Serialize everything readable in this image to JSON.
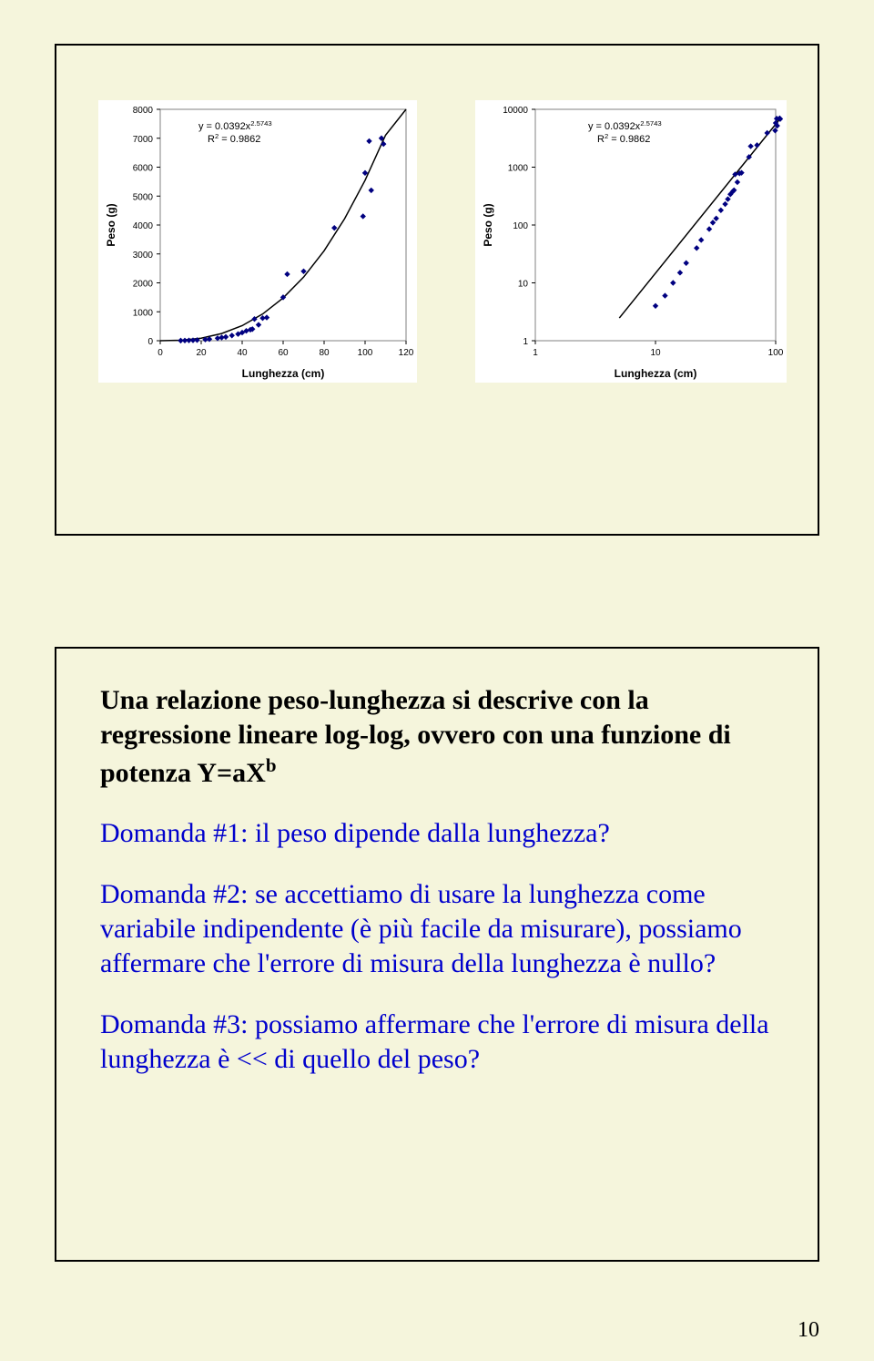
{
  "page_number": "10",
  "chart_panel": {
    "background_color": "#f5f5dc",
    "border_color": "#000000"
  },
  "chart_linear": {
    "type": "scatter",
    "xlabel": "Lunghezza (cm)",
    "ylabel": "Peso (g)",
    "xlabel_fontsize": 12,
    "ylabel_fontsize": 12,
    "xlim": [
      0,
      120
    ],
    "ylim": [
      0,
      8000
    ],
    "xtick_step": 20,
    "ytick_step": 1000,
    "xticks": [
      0,
      20,
      40,
      60,
      80,
      100,
      120
    ],
    "yticks": [
      0,
      1000,
      2000,
      3000,
      4000,
      5000,
      6000,
      7000,
      8000
    ],
    "tick_fontsize": 10,
    "point_color": "#000080",
    "fit_line_color": "#000000",
    "fit_line_width": 1.5,
    "plot_border_color": "#808080",
    "background_color": "#ffffff",
    "equation_line1": "y = 0.0392x",
    "equation_exp": "2.5743",
    "equation_line2_a": "R",
    "equation_line2_sup": "2",
    "equation_line2_b": " = 0.9862",
    "equation_fontsize": 11,
    "points": [
      [
        10,
        4
      ],
      [
        12,
        6
      ],
      [
        14,
        10
      ],
      [
        16,
        15
      ],
      [
        18,
        22
      ],
      [
        22,
        40
      ],
      [
        24,
        55
      ],
      [
        28,
        85
      ],
      [
        30,
        110
      ],
      [
        32,
        130
      ],
      [
        35,
        180
      ],
      [
        38,
        230
      ],
      [
        40,
        280
      ],
      [
        42,
        340
      ],
      [
        44,
        380
      ],
      [
        45,
        400
      ],
      [
        46,
        750
      ],
      [
        48,
        550
      ],
      [
        50,
        780
      ],
      [
        52,
        800
      ],
      [
        60,
        1500
      ],
      [
        62,
        2300
      ],
      [
        70,
        2400
      ],
      [
        85,
        3900
      ],
      [
        99,
        4300
      ],
      [
        100,
        5800
      ],
      [
        102,
        6900
      ],
      [
        103,
        5200
      ],
      [
        108,
        7000
      ],
      [
        109,
        6800
      ]
    ],
    "fit_curve": [
      [
        0,
        0
      ],
      [
        10,
        15
      ],
      [
        20,
        87
      ],
      [
        30,
        248
      ],
      [
        40,
        520
      ],
      [
        50,
        924
      ],
      [
        60,
        1478
      ],
      [
        70,
        2200
      ],
      [
        80,
        3108
      ],
      [
        90,
        4217
      ],
      [
        100,
        5544
      ],
      [
        110,
        7107
      ],
      [
        120,
        8923
      ]
    ]
  },
  "chart_log": {
    "type": "scatter",
    "xlabel": "Lunghezza (cm)",
    "ylabel": "Peso (g)",
    "xlabel_fontsize": 12,
    "ylabel_fontsize": 12,
    "xscale": "log",
    "yscale": "log",
    "xlim": [
      1,
      100
    ],
    "ylim": [
      1,
      10000
    ],
    "xticks": [
      1,
      10,
      100
    ],
    "yticks": [
      1,
      10,
      100,
      1000,
      10000
    ],
    "tick_fontsize": 10,
    "point_color": "#000080",
    "fit_line_color": "#000000",
    "fit_line_width": 1.5,
    "plot_border_color": "#808080",
    "background_color": "#ffffff",
    "equation_line1": "y = 0.0392x",
    "equation_exp": "2.5743",
    "equation_line2_a": "R",
    "equation_line2_sup": "2",
    "equation_line2_b": " = 0.9862",
    "equation_fontsize": 11,
    "points": [
      [
        10,
        4
      ],
      [
        12,
        6
      ],
      [
        14,
        10
      ],
      [
        16,
        15
      ],
      [
        18,
        22
      ],
      [
        22,
        40
      ],
      [
        24,
        55
      ],
      [
        28,
        85
      ],
      [
        30,
        110
      ],
      [
        32,
        130
      ],
      [
        35,
        180
      ],
      [
        38,
        230
      ],
      [
        40,
        280
      ],
      [
        42,
        340
      ],
      [
        44,
        380
      ],
      [
        45,
        400
      ],
      [
        46,
        750
      ],
      [
        48,
        550
      ],
      [
        50,
        780
      ],
      [
        52,
        800
      ],
      [
        60,
        1500
      ],
      [
        62,
        2300
      ],
      [
        70,
        2400
      ],
      [
        85,
        3900
      ],
      [
        99,
        4300
      ],
      [
        100,
        5800
      ],
      [
        102,
        6900
      ],
      [
        103,
        5200
      ],
      [
        108,
        7000
      ],
      [
        109,
        6800
      ]
    ]
  },
  "text_block": {
    "intro": "Una relazione peso-lunghezza si descrive con la regressione lineare log-log, ovvero con una funzione di potenza Y=aX",
    "intro_sup": "b",
    "q1": "Domanda #1: il peso dipende dalla lunghezza?",
    "q2": "Domanda #2: se accettiamo di usare la lunghezza come variabile indipendente (è più facile da misurare), possiamo affermare che l'errore di misura della lunghezza è nullo?",
    "q3": "Domanda #3: possiamo affermare che l'errore di misura della lunghezza è << di quello del peso?"
  }
}
